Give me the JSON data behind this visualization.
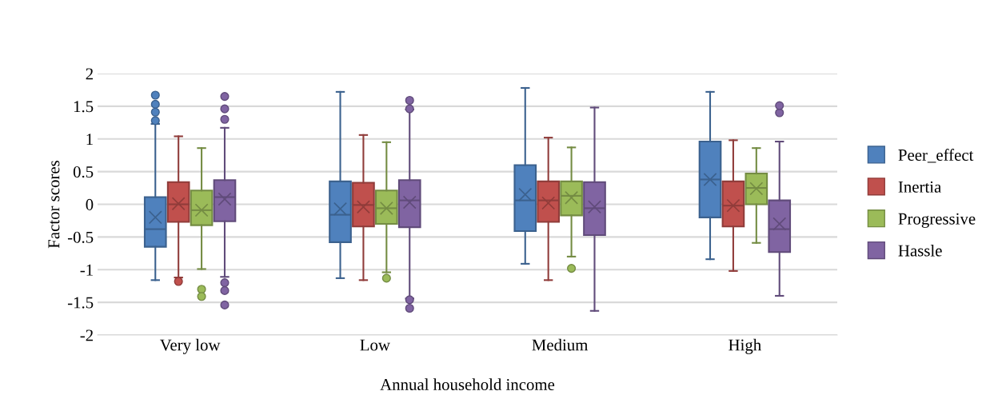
{
  "chart_data": {
    "type": "box",
    "xlabel": "Annual household income",
    "ylabel": "Factor scores",
    "categories": [
      "Very low",
      "Low",
      "Medium",
      "High"
    ],
    "ylim": [
      -2,
      2
    ],
    "yticks": [
      -2,
      -1.5,
      -1,
      -0.5,
      0,
      0.5,
      1,
      1.5,
      2
    ],
    "grid": "y",
    "legend": "right",
    "marker": "square",
    "series": [
      {
        "name": "Peer_effect",
        "color": "#4f81bd",
        "boxes": [
          {
            "low": -1.16,
            "q1": -0.65,
            "median": -0.38,
            "q3": 0.11,
            "high": 1.23,
            "mean": -0.2,
            "outliers": [
              1.28,
              1.41,
              1.53,
              1.67
            ]
          },
          {
            "low": -1.13,
            "q1": -0.58,
            "median": -0.16,
            "q3": 0.35,
            "high": 1.72,
            "mean": -0.07
          },
          {
            "low": -0.91,
            "q1": -0.41,
            "median": 0.06,
            "q3": 0.6,
            "high": 1.78,
            "mean": 0.15
          },
          {
            "low": -0.84,
            "q1": -0.2,
            "median": 0.38,
            "q3": 0.96,
            "high": 1.72,
            "mean": 0.38
          }
        ]
      },
      {
        "name": "Inertia",
        "color": "#c0504d",
        "boxes": [
          {
            "low": -1.12,
            "q1": -0.27,
            "median": 0.0,
            "q3": 0.34,
            "high": 1.04,
            "mean": 0.01,
            "outliers": [
              -1.18
            ]
          },
          {
            "low": -1.16,
            "q1": -0.34,
            "median": -0.01,
            "q3": 0.33,
            "high": 1.06,
            "mean": -0.04
          },
          {
            "low": -1.16,
            "q1": -0.27,
            "median": 0.06,
            "q3": 0.35,
            "high": 1.02,
            "mean": 0.02
          },
          {
            "low": -1.02,
            "q1": -0.34,
            "median": -0.02,
            "q3": 0.35,
            "high": 0.98,
            "mean": -0.02
          }
        ]
      },
      {
        "name": "Progressive",
        "color": "#9bbb59",
        "boxes": [
          {
            "low": -0.99,
            "q1": -0.32,
            "median": -0.09,
            "q3": 0.21,
            "high": 0.86,
            "mean": -0.09,
            "outliers": [
              -1.3,
              -1.41
            ]
          },
          {
            "low": -1.04,
            "q1": -0.3,
            "median": -0.06,
            "q3": 0.21,
            "high": 0.95,
            "mean": -0.06,
            "outliers": [
              -1.13
            ]
          },
          {
            "low": -0.8,
            "q1": -0.17,
            "median": 0.13,
            "q3": 0.35,
            "high": 0.87,
            "mean": 0.1,
            "outliers": [
              -0.98
            ]
          },
          {
            "low": -0.59,
            "q1": 0.0,
            "median": 0.25,
            "q3": 0.47,
            "high": 0.86,
            "mean": 0.24
          }
        ]
      },
      {
        "name": "Hassle",
        "color": "#8064a2",
        "boxes": [
          {
            "low": -1.11,
            "q1": -0.26,
            "median": 0.11,
            "q3": 0.37,
            "high": 1.17,
            "mean": 0.08,
            "outliers": [
              1.3,
              1.46,
              1.65,
              -1.2,
              -1.32,
              -1.54
            ]
          },
          {
            "low": -1.44,
            "q1": -0.35,
            "median": 0.06,
            "q3": 0.37,
            "high": 1.45,
            "mean": 0.03,
            "outliers": [
              1.46,
              1.59,
              -1.46,
              -1.59
            ]
          },
          {
            "low": -1.63,
            "q1": -0.47,
            "median": -0.06,
            "q3": 0.34,
            "high": 1.48,
            "mean": -0.04
          },
          {
            "low": -1.4,
            "q1": -0.73,
            "median": -0.38,
            "q3": 0.06,
            "high": 0.96,
            "mean": -0.3,
            "outliers": [
              1.4,
              1.51
            ]
          }
        ]
      }
    ]
  }
}
